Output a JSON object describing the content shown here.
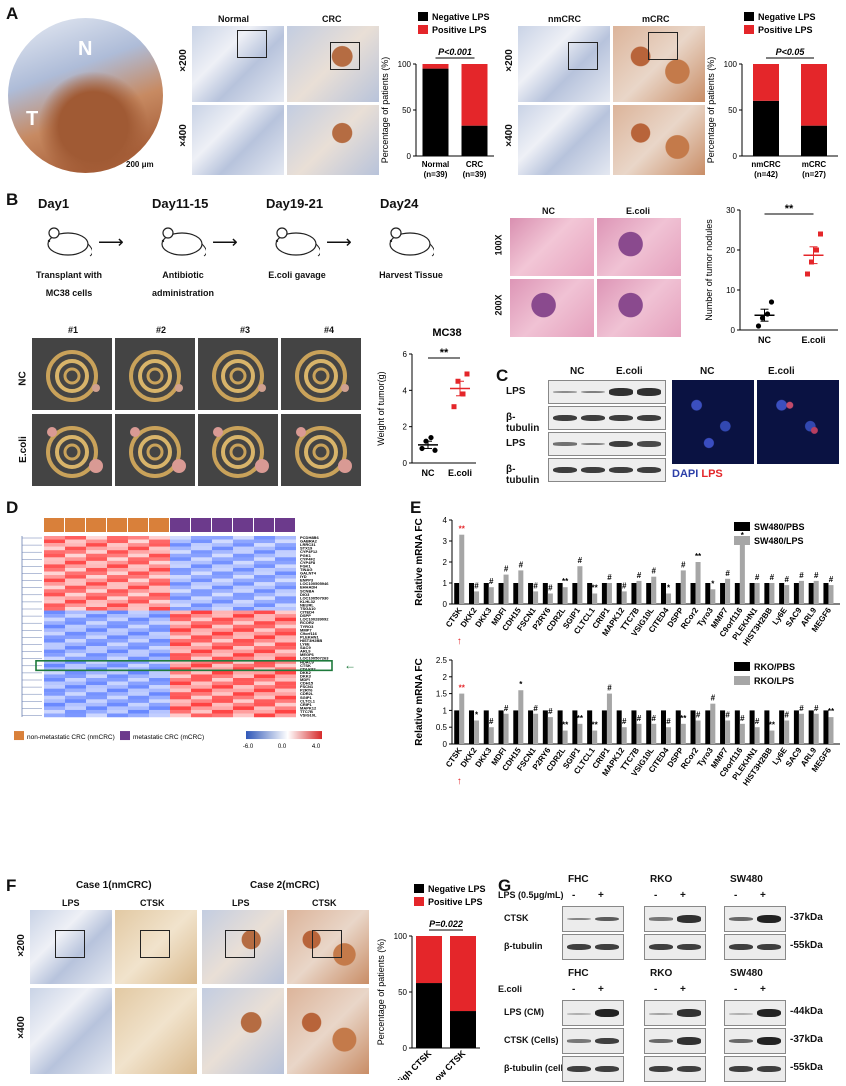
{
  "panelA": {
    "label": "A",
    "tissue_labels": [
      "N",
      "T"
    ],
    "scale": "200 μm",
    "left_pair": {
      "cols": [
        "Normal",
        "CRC"
      ],
      "rows": [
        "×200",
        "×400"
      ]
    },
    "right_pair": {
      "cols": [
        "nmCRC",
        "mCRC"
      ],
      "rows": [
        "×200",
        "×400"
      ]
    },
    "legend": [
      "Negative LPS",
      "Positive LPS"
    ],
    "ylabel": "Percentage of patients (%)"
  },
  "panelB": {
    "label": "B",
    "timeline": [
      {
        "day": "Day1",
        "desc1": "Transplant with",
        "desc2": "MC38 cells"
      },
      {
        "day": "Day11-15",
        "desc1": "Antibiotic",
        "desc2": "administration"
      },
      {
        "day": "Day19-21",
        "desc1": "E.coli gavage",
        "desc2": ""
      },
      {
        "day": "Day24",
        "desc1": "Harvest Tissue",
        "desc2": ""
      }
    ],
    "samples": [
      "#1",
      "#2",
      "#3",
      "#4"
    ],
    "groups": [
      "NC",
      "E.coli"
    ],
    "he_cols": [
      "NC",
      "E.coli"
    ],
    "he_rows": [
      "100X",
      "200X"
    ]
  },
  "panelC": {
    "label": "C",
    "cols": [
      "NC",
      "E.coli"
    ],
    "rows": [
      "LPS",
      "β-tubulin",
      "LPS",
      "β-tubulin"
    ],
    "if_cols": [
      "NC",
      "E.coli"
    ],
    "if_legend": [
      "DAPI",
      "LPS"
    ]
  },
  "panelD": {
    "label": "D",
    "genes": [
      "PCDH8B6",
      "GABRA2",
      "LRRC31",
      "STX19",
      "CYP4F12",
      "PGK1",
      "CYP4F2",
      "CYP4F8",
      "FGK1",
      "TINAG",
      "GALNT4",
      "IYD",
      "ENPP3",
      "LOC100505946",
      "EHHADH",
      "SCNBA",
      "DIO3",
      "LOC100507930",
      "KLHL32",
      "NEURL",
      "TSGA10",
      "CITED4",
      "DSPP",
      "LOC100289092",
      "RCOR2",
      "TYRO3",
      "MMP7",
      "C9orf116",
      "PLEKHN1",
      "HIST3H2BB",
      "LY6E",
      "SAC9",
      "ARL9",
      "MEGF6",
      "LOC100507263",
      "HDAC9",
      "CTSK",
      "CDLK82",
      "DKK2",
      "DKK3",
      "MDFI",
      "CDH15",
      "FSCN1",
      "P2RY6",
      "CDR2L",
      "SGIP1",
      "CLTCL1",
      "CRIP1",
      "MAPK12",
      "TTC7B",
      "VSIG10L"
    ],
    "legend_nm": "non-metastatic CRC (nmCRC)",
    "legend_m": "metastatic CRC (mCRC)",
    "scale_ticks": [
      "-6.0",
      "0.0",
      "4.0"
    ]
  },
  "panelE": {
    "label": "E",
    "top_legend": [
      "SW480/PBS",
      "SW480/LPS"
    ],
    "bottom_legend": [
      "RKO/PBS",
      "RKO/LPS"
    ]
  },
  "panelF": {
    "label": "F",
    "cases": [
      "Case 1(nmCRC)",
      "Case 2(mCRC)"
    ],
    "stains": [
      "LPS",
      "CTSK",
      "LPS",
      "CTSK"
    ],
    "rows": [
      "×200",
      "×400"
    ],
    "legend": [
      "Negative LPS",
      "Positive LPS"
    ],
    "ylabel": "Percentage of patients (%)"
  },
  "panelG": {
    "label": "G",
    "cells": [
      "FHC",
      "RKO",
      "SW480"
    ],
    "top_treat": "LPS (0.5μg/mL)",
    "bottom_treat": "E.coli",
    "signs": [
      "-",
      "+"
    ],
    "top_rows": [
      "CTSK",
      "β-tubulin"
    ],
    "top_kda": [
      "37kDa",
      "55kDa"
    ],
    "bottom_rows": [
      "LPS (CM)",
      "CTSK (Cells)",
      "β-tubulin (cells)"
    ],
    "bottom_kda": [
      "44kDa",
      "37kDa",
      "55kDa"
    ]
  },
  "chart_data": [
    {
      "type": "bar",
      "id": "A1",
      "categories": [
        "Normal\n(n=39)",
        "CRC\n(n=39)"
      ],
      "series": [
        {
          "name": "Negative LPS",
          "values": [
            95,
            33
          ]
        },
        {
          "name": "Positive LPS",
          "values": [
            5,
            67
          ]
        }
      ],
      "stacked": true,
      "ylim": [
        0,
        100
      ],
      "yticks": [
        0,
        50,
        100
      ],
      "ylabel": "Percentage of patients (%)",
      "annotation": "P<0.001",
      "colors": [
        "#000000",
        "#e4262a"
      ]
    },
    {
      "type": "bar",
      "id": "A2",
      "categories": [
        "nmCRC\n(n=42)",
        "mCRC\n(n=27)"
      ],
      "series": [
        {
          "name": "Negative LPS",
          "values": [
            60,
            33
          ]
        },
        {
          "name": "Positive LPS",
          "values": [
            40,
            67
          ]
        }
      ],
      "stacked": true,
      "ylim": [
        0,
        100
      ],
      "yticks": [
        0,
        50,
        100
      ],
      "ylabel": "Percentage of patients (%)",
      "annotation": "P<0.05",
      "colors": [
        "#000000",
        "#e4262a"
      ]
    },
    {
      "type": "scatter",
      "id": "B-weight",
      "title": "MC38",
      "categories": [
        "NC",
        "E.coli"
      ],
      "points": [
        [
          0.8,
          1.2,
          1.4,
          0.7
        ],
        [
          3.1,
          4.5,
          3.8,
          4.9
        ]
      ],
      "means": [
        1.0,
        4.1
      ],
      "sems": [
        0.2,
        0.4
      ],
      "ylim": [
        0,
        6
      ],
      "yticks": [
        0,
        2,
        4,
        6
      ],
      "ylabel": "Weight of tumor(g)",
      "annotation": "**"
    },
    {
      "type": "scatter",
      "id": "B-nodules",
      "categories": [
        "NC",
        "E.coli"
      ],
      "points": [
        [
          1,
          3,
          4,
          7
        ],
        [
          14,
          17,
          20,
          24
        ]
      ],
      "means": [
        3.7,
        18.7
      ],
      "sems": [
        1.5,
        2.1
      ],
      "ylim": [
        0,
        30
      ],
      "yticks": [
        0,
        10,
        20,
        30
      ],
      "ylabel": "Number of tumor nodules",
      "annotation": "**"
    },
    {
      "type": "bar",
      "id": "E-top",
      "ylabel": "Relative mRNA FC",
      "ylim": [
        0,
        4
      ],
      "yticks": [
        0,
        1,
        2,
        3,
        4
      ],
      "categories": [
        "CTSK",
        "DKK2",
        "DKK3",
        "MDFI",
        "CDH15",
        "FSCN1",
        "P2RY6",
        "CDR2L",
        "SGIP1",
        "CLTCL1",
        "CRIP1",
        "MAPK12",
        "TTC7B",
        "VSIG10L",
        "CITED4",
        "DSPP",
        "RCor2",
        "Tyro3",
        "MMP7",
        "C9orf116",
        "PLEKHN1",
        "HIST3H2BB",
        "Ly6E",
        "SAC9",
        "ARL9",
        "MEGF6"
      ],
      "series": [
        {
          "name": "SW480/PBS",
          "values": [
            1,
            1,
            1,
            1,
            1,
            1,
            1,
            1,
            1,
            1,
            1,
            1,
            1,
            1,
            1,
            1,
            1,
            1,
            1,
            1,
            1,
            1,
            1,
            1,
            1,
            1
          ]
        },
        {
          "name": "SW480/LPS",
          "values": [
            3.3,
            0.6,
            0.8,
            1.4,
            1.6,
            0.6,
            0.5,
            0.8,
            1.8,
            0.5,
            1.0,
            0.6,
            1.1,
            1.3,
            0.5,
            1.6,
            2.0,
            0.7,
            1.2,
            3.0,
            1.0,
            1.0,
            0.9,
            1.1,
            1.1,
            0.9
          ]
        }
      ],
      "marks": [
        "**",
        "#",
        "#",
        "#",
        "#",
        "#",
        "#",
        "**",
        "#",
        "**",
        "#",
        "#",
        "#",
        "#",
        "*",
        "#",
        "**",
        "*",
        "#",
        "*",
        "#",
        "#",
        "#",
        "#",
        "#",
        "#"
      ],
      "colors": [
        "#000000",
        "#a6a6a6"
      ]
    },
    {
      "type": "bar",
      "id": "E-bottom",
      "ylabel": "Relative mRNA FC",
      "ylim": [
        0,
        2.5
      ],
      "yticks": [
        0,
        0.5,
        1.0,
        1.5,
        2.0,
        2.5
      ],
      "categories": [
        "CTSK",
        "DKK2",
        "DKK3",
        "MDFI",
        "CDH15",
        "FSCN1",
        "P2RY6",
        "CDR2L",
        "SGIP1",
        "CLTCL1",
        "CRIP1",
        "MAPK12",
        "TTC7B",
        "VSIG10L",
        "CITED4",
        "DSPP",
        "RCor2",
        "Tyro3",
        "MMP7",
        "C9orf116",
        "PLEKHN1",
        "HIST3H2BB",
        "Ly6E",
        "SAC9",
        "ARL9",
        "MEGF6"
      ],
      "series": [
        {
          "name": "RKO/PBS",
          "values": [
            1,
            1,
            1,
            1,
            1,
            1,
            1,
            1,
            1,
            1,
            1,
            1,
            1,
            1,
            1,
            1,
            1,
            1,
            1,
            1,
            1,
            1,
            1,
            1,
            1,
            1
          ]
        },
        {
          "name": "RKO/LPS",
          "values": [
            1.5,
            0.7,
            0.5,
            0.9,
            1.6,
            0.9,
            0.8,
            0.4,
            0.6,
            0.4,
            1.5,
            0.5,
            0.6,
            0.6,
            0.5,
            0.6,
            0.7,
            1.2,
            0.7,
            0.6,
            0.5,
            0.4,
            0.7,
            0.9,
            0.9,
            0.8
          ]
        }
      ],
      "marks": [
        "**",
        "*",
        "#",
        "#",
        "*",
        "#",
        "#",
        "**",
        "**",
        "**",
        "#",
        "#",
        "#",
        "#",
        "#",
        "**",
        "#",
        "#",
        "#",
        "#",
        "#",
        "**",
        "#",
        "#",
        "#",
        "**"
      ],
      "colors": [
        "#000000",
        "#a6a6a6"
      ]
    },
    {
      "type": "bar",
      "id": "F",
      "categories": [
        "High CTSK",
        "Low CTSK"
      ],
      "series": [
        {
          "name": "Negative LPS",
          "values": [
            58,
            33
          ]
        },
        {
          "name": "Positive LPS",
          "values": [
            42,
            67
          ]
        }
      ],
      "stacked": true,
      "ylim": [
        0,
        100
      ],
      "yticks": [
        0,
        50,
        100
      ],
      "ylabel": "Percentage of patients (%)",
      "annotation": "P=0.022",
      "colors": [
        "#000000",
        "#e4262a"
      ]
    }
  ]
}
